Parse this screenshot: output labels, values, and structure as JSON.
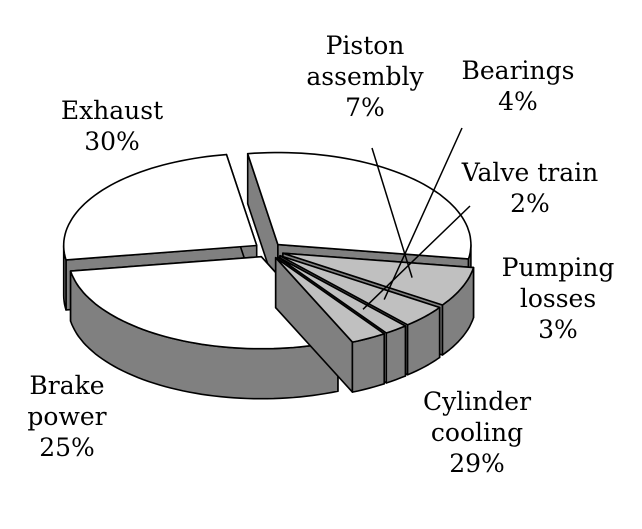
{
  "chart_data": {
    "type": "pie",
    "title": "",
    "slices": [
      {
        "label_lines": [
          "Exhaust"
        ],
        "pct": "30%",
        "value": 30
      },
      {
        "label_lines": [
          "Piston",
          "assembly"
        ],
        "pct": "7%",
        "value": 7
      },
      {
        "label_lines": [
          "Bearings"
        ],
        "pct": "4%",
        "value": 4
      },
      {
        "label_lines": [
          "Valve train"
        ],
        "pct": "2%",
        "value": 2
      },
      {
        "label_lines": [
          "Pumping",
          "losses"
        ],
        "pct": "3%",
        "value": 3
      },
      {
        "label_lines": [
          "Cylinder",
          "cooling"
        ],
        "pct": "29%",
        "value": 29
      },
      {
        "label_lines": [
          "Brake",
          "power"
        ],
        "pct": "25%",
        "value": 25
      }
    ],
    "style": "3d-exploded",
    "colors": {
      "light": "#ffffff",
      "shaded": "#c0c0c0",
      "side": "#808080",
      "outline": "#000000"
    }
  }
}
